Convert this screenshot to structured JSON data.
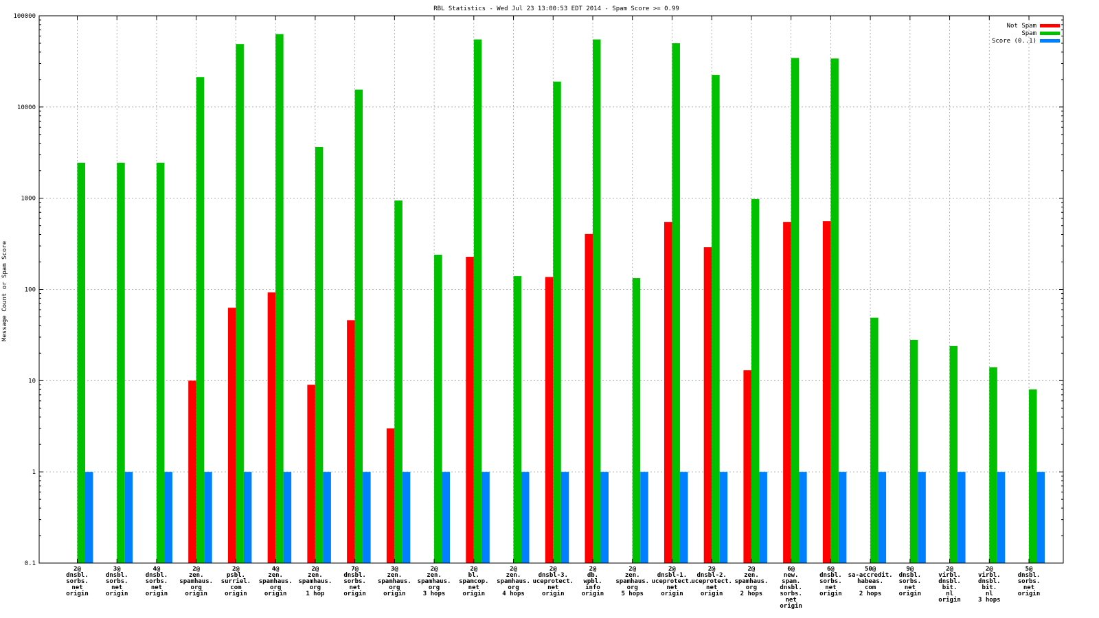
{
  "chart_data": {
    "type": "bar",
    "title": "RBL Statistics - Wed Jul 23 13:00:53 EDT 2014 - Spam Score >= 0.99",
    "ylabel": "Message Count or Spam Score",
    "xlabel": "",
    "yscale": "log",
    "ylim": [
      0.1,
      100000
    ],
    "yticks": [
      "0.1",
      "1",
      "10",
      "100",
      "1000",
      "10000",
      "100000"
    ],
    "grid": true,
    "legend_position": "top-right",
    "categories": [
      [
        "2@",
        "dnsbl.",
        "sorbs.",
        "net",
        "origin"
      ],
      [
        "3@",
        "dnsbl.",
        "sorbs.",
        "net",
        "origin"
      ],
      [
        "4@",
        "dnsbl.",
        "sorbs.",
        "net",
        "origin"
      ],
      [
        "2@",
        "zen.",
        "spamhaus.",
        "org",
        "origin"
      ],
      [
        "2@",
        "psbl.",
        "surriel.",
        "com",
        "origin"
      ],
      [
        "4@",
        "zen.",
        "spamhaus.",
        "org",
        "origin"
      ],
      [
        "2@",
        "zen.",
        "spamhaus.",
        "org",
        "1 hop"
      ],
      [
        "7@",
        "dnsbl.",
        "sorbs.",
        "net",
        "origin"
      ],
      [
        "3@",
        "zen.",
        "spamhaus.",
        "org",
        "origin"
      ],
      [
        "2@",
        "zen.",
        "spamhaus.",
        "org",
        "3 hops"
      ],
      [
        "2@",
        "bl.",
        "spamcop.",
        "net",
        "origin"
      ],
      [
        "2@",
        "zen.",
        "spamhaus.",
        "org",
        "4 hops"
      ],
      [
        "2@",
        "dnsbl-3.",
        "uceprotect.",
        "net",
        "origin"
      ],
      [
        "2@",
        "db.",
        "wpbl.",
        "info",
        "origin"
      ],
      [
        "2@",
        "zen.",
        "spamhaus.",
        "org",
        "5 hops"
      ],
      [
        "2@",
        "dnsbl-1.",
        "uceprotect.",
        "net",
        "origin"
      ],
      [
        "2@",
        "dnsbl-2.",
        "uceprotect.",
        "net",
        "origin"
      ],
      [
        "2@",
        "zen.",
        "spamhaus.",
        "org",
        "2 hops"
      ],
      [
        "6@",
        "new.",
        "spam.",
        "dnsbl.",
        "sorbs.",
        "net",
        "origin"
      ],
      [
        "6@",
        "dnsbl.",
        "sorbs.",
        "net",
        "origin"
      ],
      [
        "50@",
        "sa-accredit.",
        "habeas.",
        "com",
        "2 hops"
      ],
      [
        "9@",
        "dnsbl.",
        "sorbs.",
        "net",
        "origin"
      ],
      [
        "2@",
        "virbl.",
        "dnsbl.",
        "bit.",
        "nl",
        "origin"
      ],
      [
        "2@",
        "virbl.",
        "dnsbl.",
        "bit.",
        "nl",
        "3 hops"
      ],
      [
        "5@",
        "dnsbl.",
        "sorbs.",
        "net",
        "origin"
      ]
    ],
    "series": [
      {
        "name": "Not Spam",
        "color": "#ff0000",
        "values": [
          0,
          0,
          0,
          10,
          63,
          93,
          9,
          46,
          3,
          0,
          228,
          0,
          137,
          405,
          0,
          550,
          290,
          13,
          550,
          560,
          0,
          0,
          0,
          0,
          0
        ]
      },
      {
        "name": "Spam",
        "color": "#00c000",
        "values": [
          2450,
          2450,
          2450,
          21300,
          49000,
          63000,
          3650,
          15500,
          945,
          240,
          55000,
          140,
          19000,
          55000,
          133,
          50000,
          22500,
          980,
          34500,
          34000,
          49,
          28,
          24,
          14,
          8
        ]
      },
      {
        "name": "Score (0..1)",
        "color": "#0080ff",
        "values": [
          1,
          1,
          1,
          1,
          1,
          1,
          1,
          1,
          1,
          1,
          1,
          1,
          1,
          1,
          1,
          1,
          1,
          1,
          1,
          1,
          1,
          1,
          1,
          1,
          1
        ]
      }
    ]
  }
}
